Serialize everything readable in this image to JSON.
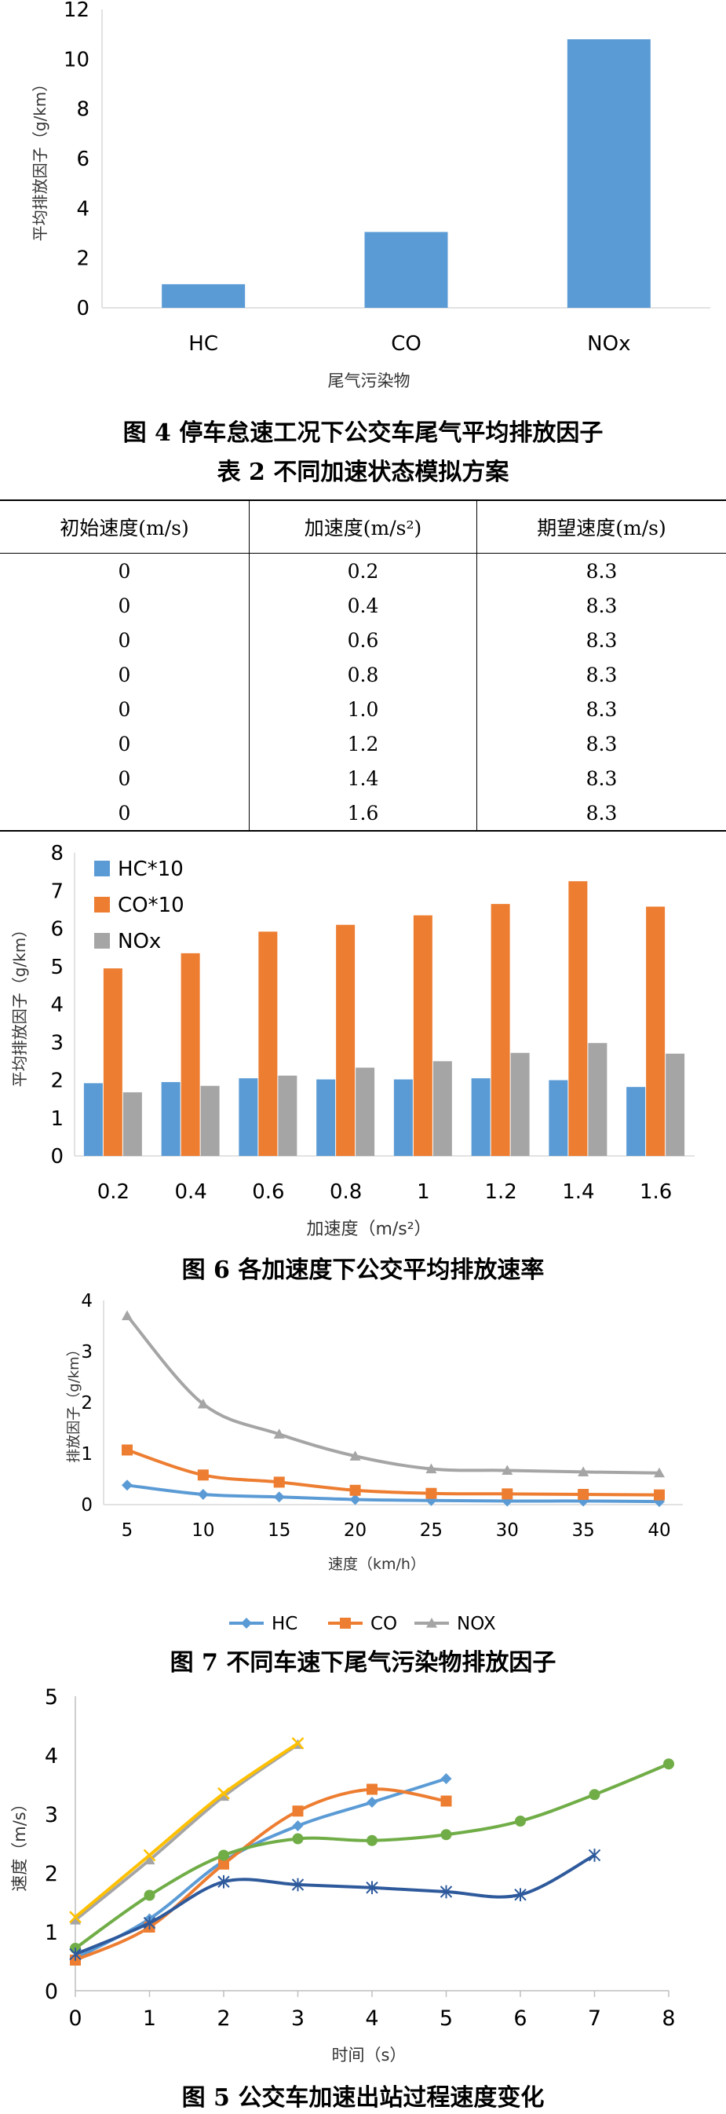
{
  "chart_data": [
    {
      "type": "bar",
      "id": "fig4",
      "categories": [
        "HC",
        "CO",
        "NOx"
      ],
      "values": [
        0.95,
        3.05,
        10.8
      ],
      "ylabel": "平均排放因子（g/km）",
      "xlabel": "尾气污染物",
      "ylim": [
        0,
        12
      ],
      "yticks": [
        0,
        2,
        4,
        6,
        8,
        10,
        12
      ],
      "color": "#5b9bd5",
      "caption": "图 4  停车怠速工况下公交车尾气平均排放因子"
    },
    {
      "type": "bar",
      "id": "fig6",
      "categories": [
        "0.2",
        "0.4",
        "0.6",
        "0.8",
        "1",
        "1.2",
        "1.4",
        "1.6"
      ],
      "series": [
        {
          "name": "HC*10",
          "color": "#5b9bd5",
          "values": [
            1.92,
            1.95,
            2.05,
            2.02,
            2.02,
            2.05,
            2.0,
            1.82
          ]
        },
        {
          "name": "CO*10",
          "color": "#ed7d31",
          "values": [
            4.95,
            5.35,
            5.92,
            6.1,
            6.35,
            6.65,
            7.25,
            6.58
          ]
        },
        {
          "name": "NOx",
          "color": "#a5a5a5",
          "values": [
            1.68,
            1.85,
            2.12,
            2.33,
            2.5,
            2.72,
            2.98,
            2.7
          ]
        }
      ],
      "ylabel": "平均排放因子（g/km）",
      "xlabel": "加速度（m/s²）",
      "ylim": [
        0,
        8
      ],
      "yticks": [
        0,
        1,
        2,
        3,
        4,
        5,
        6,
        7,
        8
      ],
      "legend": "top-left",
      "caption": "图 6  各加速度下公交平均排放速率"
    },
    {
      "type": "line",
      "id": "fig7",
      "x": [
        5,
        10,
        15,
        20,
        25,
        30,
        35,
        40
      ],
      "series": [
        {
          "name": "HC",
          "color": "#5b9bd5",
          "marker": "diamond",
          "values": [
            0.38,
            0.2,
            0.15,
            0.1,
            0.08,
            0.07,
            0.07,
            0.06
          ]
        },
        {
          "name": "CO",
          "color": "#ed7d31",
          "marker": "square",
          "values": [
            1.07,
            0.58,
            0.44,
            0.28,
            0.22,
            0.21,
            0.2,
            0.19
          ]
        },
        {
          "name": "NOX",
          "color": "#a5a5a5",
          "marker": "triangle",
          "values": [
            3.7,
            1.97,
            1.38,
            0.95,
            0.7,
            0.67,
            0.64,
            0.62
          ]
        }
      ],
      "ylabel": "排放因子（g/km）",
      "xlabel": "速度（km/h）",
      "xticks": [
        5,
        10,
        15,
        20,
        25,
        30,
        35,
        40
      ],
      "ylim": [
        0,
        4
      ],
      "yticks": [
        0,
        1,
        2,
        3,
        4
      ],
      "legend": "bottom",
      "caption": "图 7  不同车速下尾气污染物排放因子"
    },
    {
      "type": "line",
      "id": "fig5",
      "xlim": [
        0,
        8
      ],
      "xticks": [
        0,
        1,
        2,
        3,
        4,
        5,
        6,
        7,
        8
      ],
      "ylim": [
        0,
        5
      ],
      "yticks": [
        0,
        1,
        2,
        3,
        4,
        5
      ],
      "ylabel": "速度（m/s）",
      "xlabel": "时间（s）",
      "series": [
        {
          "color": "#5b9bd5",
          "marker": "diamond",
          "points": [
            [
              0,
              0.55
            ],
            [
              1,
              1.22
            ],
            [
              2,
              2.2
            ],
            [
              3,
              2.8
            ],
            [
              4,
              3.2
            ],
            [
              5,
              3.6
            ]
          ]
        },
        {
          "color": "#ed7d31",
          "marker": "square",
          "points": [
            [
              0,
              0.52
            ],
            [
              1,
              1.08
            ],
            [
              2,
              2.15
            ],
            [
              3,
              3.05
            ],
            [
              4,
              3.42
            ],
            [
              5,
              3.22
            ]
          ]
        },
        {
          "color": "#a5a5a5",
          "marker": "triangle",
          "points": [
            [
              0,
              1.2
            ],
            [
              1,
              2.22
            ],
            [
              2,
              3.3
            ],
            [
              3,
              4.18
            ]
          ]
        },
        {
          "color": "#ffc000",
          "marker": "x",
          "points": [
            [
              0,
              1.25
            ],
            [
              1,
              2.3
            ],
            [
              2,
              3.35
            ],
            [
              3,
              4.2
            ]
          ]
        },
        {
          "color": "#70ad47",
          "marker": "circle",
          "points": [
            [
              0,
              0.72
            ],
            [
              1,
              1.62
            ],
            [
              2,
              2.3
            ],
            [
              3,
              2.58
            ],
            [
              4,
              2.55
            ],
            [
              5,
              2.65
            ],
            [
              6,
              2.88
            ],
            [
              7,
              3.33
            ],
            [
              8,
              3.85
            ]
          ]
        },
        {
          "color": "#2e5a9c",
          "marker": "asterisk",
          "points": [
            [
              0,
              0.62
            ],
            [
              1,
              1.15
            ],
            [
              2,
              1.85
            ],
            [
              3,
              1.8
            ],
            [
              4,
              1.75
            ],
            [
              5,
              1.68
            ],
            [
              6,
              1.63
            ],
            [
              7,
              2.3
            ]
          ]
        }
      ],
      "caption": "图 5  公交车加速出站过程速度变化"
    }
  ],
  "table2": {
    "caption": "表 2   不同加速状态模拟方案",
    "headers": [
      "初始速度(m/s)",
      "加速度(m/s²)",
      "期望速度(m/s)"
    ],
    "rows": [
      [
        "0",
        "0.2",
        "8.3"
      ],
      [
        "0",
        "0.4",
        "8.3"
      ],
      [
        "0",
        "0.6",
        "8.3"
      ],
      [
        "0",
        "0.8",
        "8.3"
      ],
      [
        "0",
        "1.0",
        "8.3"
      ],
      [
        "0",
        "1.2",
        "8.3"
      ],
      [
        "0",
        "1.4",
        "8.3"
      ],
      [
        "0",
        "1.6",
        "8.3"
      ]
    ]
  }
}
